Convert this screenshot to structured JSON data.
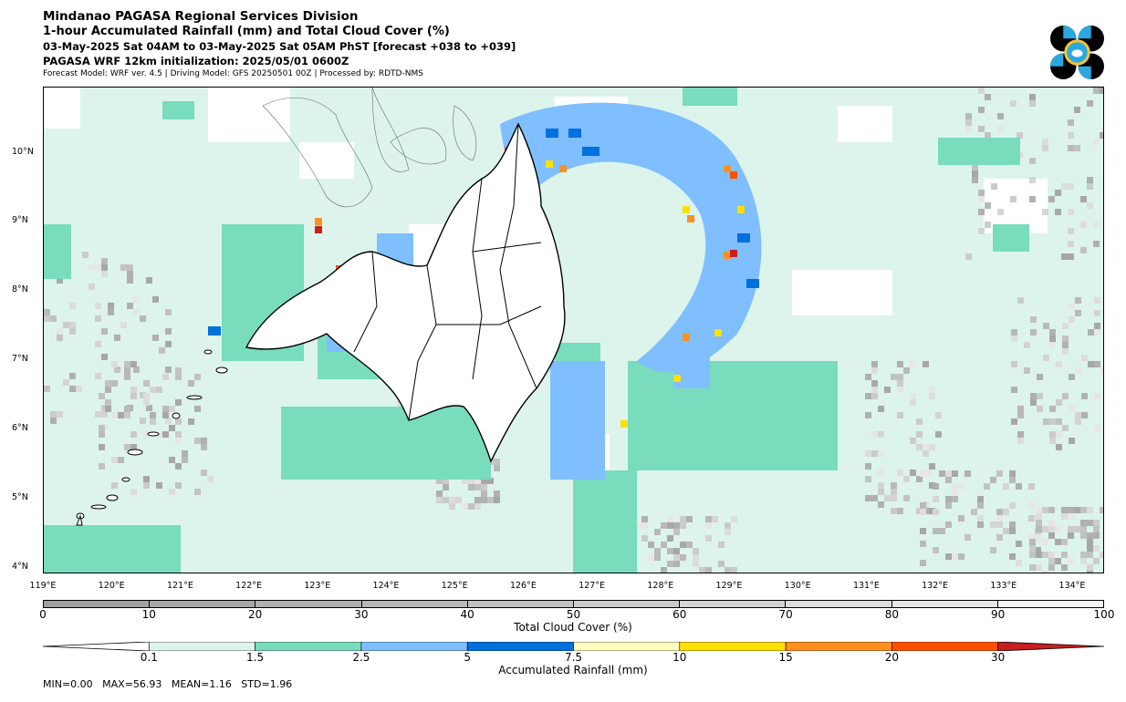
{
  "header": {
    "line1": "Mindanao PAGASA Regional Services Division",
    "line2": "1-hour Accumulated Rainfall (mm) and Total Cloud Cover (%)",
    "line3": "03-May-2025 Sat 04AM to 03-May-2025 Sat 05AM PhST [forecast +038 to +039]",
    "line4": "PAGASA WRF 12km initialization: 2025/05/01 0600Z",
    "line5": "Forecast Model: WRF ver. 4.5 | Driving Model: GFS 20250501 00Z | Processed by: RDTD-NMS"
  },
  "map": {
    "lat_labels": [
      "10°N",
      "9°N",
      "8°N",
      "7°N",
      "6°N",
      "5°N",
      "4°N"
    ],
    "lon_labels": [
      "119°E",
      "120°E",
      "121°E",
      "122°E",
      "123°E",
      "124°E",
      "125°E",
      "126°E",
      "127°E",
      "128°E",
      "129°E",
      "130°E",
      "131°E",
      "132°E",
      "133°E",
      "134°E"
    ],
    "lat_range": [
      3.9,
      10.95
    ],
    "lon_range": [
      119.0,
      134.47
    ]
  },
  "cloud_colorbar": {
    "title": "Total Cloud Cover (%)",
    "ticks": [
      "0",
      "10",
      "20",
      "30",
      "40",
      "50",
      "60",
      "70",
      "80",
      "90",
      "100"
    ],
    "colors": [
      "#a0a0a0",
      "#a7a7a7",
      "#b0b0b0",
      "#b9b9b9",
      "#c2c2c2",
      "#cbcbcb",
      "#d4d4d4",
      "#dddddd",
      "#e6e6e6",
      "#f3f3f3"
    ]
  },
  "rain_colorbar": {
    "title": "Accumulated Rainfall (mm)",
    "ticks": [
      "0.1",
      "1.5",
      "2.5",
      "5",
      "7.5",
      "10",
      "15",
      "20",
      "30"
    ],
    "colors": [
      "#ddf4ec",
      "#78dcbd",
      "#7fbfff",
      "#0070dd",
      "#ffffc0",
      "#ffe000",
      "#ff9020",
      "#ff5000",
      "#c81e1e"
    ]
  },
  "stats": {
    "text": "MIN=0.00   MAX=56.93   MEAN=1.16   STD=1.96"
  }
}
